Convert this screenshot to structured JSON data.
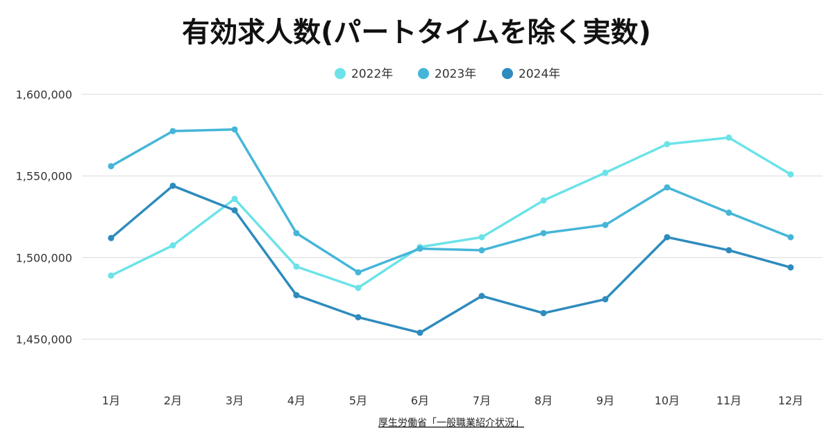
{
  "chart_data": {
    "type": "line",
    "title": "有効求人数(パートタイムを除く実数)",
    "categories": [
      "1月",
      "2月",
      "3月",
      "4月",
      "5月",
      "6月",
      "7月",
      "8月",
      "9月",
      "10月",
      "11月",
      "12月"
    ],
    "series": [
      {
        "name": "2022年",
        "color": "#6be3e8",
        "values": [
          1489000,
          1507500,
          1536000,
          1494500,
          1481500,
          1506500,
          1512500,
          1535000,
          1552000,
          1569500,
          1573500,
          1551000
        ]
      },
      {
        "name": "2023年",
        "color": "#45b6d8",
        "values": [
          1556000,
          1577500,
          1578500,
          1515000,
          1491000,
          1505500,
          1504500,
          1515000,
          1520000,
          1543000,
          1527500,
          1512500
        ]
      },
      {
        "name": "2024年",
        "color": "#2e8bbd",
        "values": [
          1512000,
          1544000,
          1529000,
          1477000,
          1463500,
          1454000,
          1476500,
          1466000,
          1474500,
          1512500,
          1504500,
          1494000
        ]
      }
    ],
    "y_ticks": [
      "1,450,000",
      "1,500,000",
      "1,550,000",
      "1,600,000"
    ],
    "y_tick_values": [
      1450000,
      1500000,
      1550000,
      1600000
    ],
    "ylim": [
      1450000,
      1600000
    ],
    "grid": true,
    "legend_position": "top-center",
    "source": "厚生労働省「一般職業紹介状況」"
  }
}
